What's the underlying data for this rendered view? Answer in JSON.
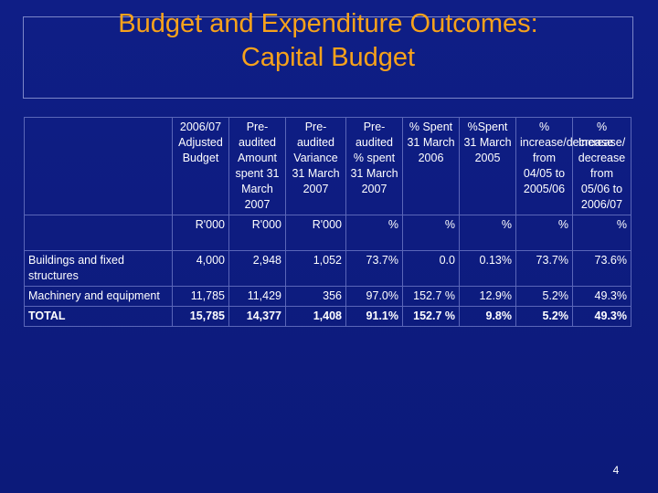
{
  "slide": {
    "title_line1": "Budget and Expenditure Outcomes:",
    "title_line2": "Capital Budget",
    "page_number": "4"
  },
  "table": {
    "headers": [
      "2006/07 Adjusted Budget",
      "Pre-audited Amount spent 31 March 2007",
      "Pre-audited Variance 31 March 2007",
      "Pre-audited % spent 31 March 2007",
      "% Spent 31 March 2006",
      "%Spent 31 March 2005",
      "% increase/decrease from 04/05 to 2005/06",
      "% Increase/ decrease from 05/06 to 2006/07"
    ],
    "units": [
      "R'000",
      "R'000",
      "R'000",
      "%",
      "%",
      "%",
      "%",
      "%"
    ],
    "rows": [
      {
        "label": "Buildings and fixed structures",
        "values": [
          "4,000",
          "2,948",
          "1,052",
          "73.7%",
          "0.0",
          "0.13%",
          "73.7%",
          "73.6%"
        ]
      },
      {
        "label": "Machinery and equipment",
        "values": [
          "11,785",
          "11,429",
          "356",
          "97.0%",
          "152.7 %",
          "12.9%",
          "5.2%",
          "49.3%"
        ]
      },
      {
        "label": "TOTAL",
        "values": [
          "15,785",
          "14,377",
          "1,408",
          "91.1%",
          "152.7 %",
          "9.8%",
          "5.2%",
          "49.3%"
        ]
      }
    ]
  }
}
